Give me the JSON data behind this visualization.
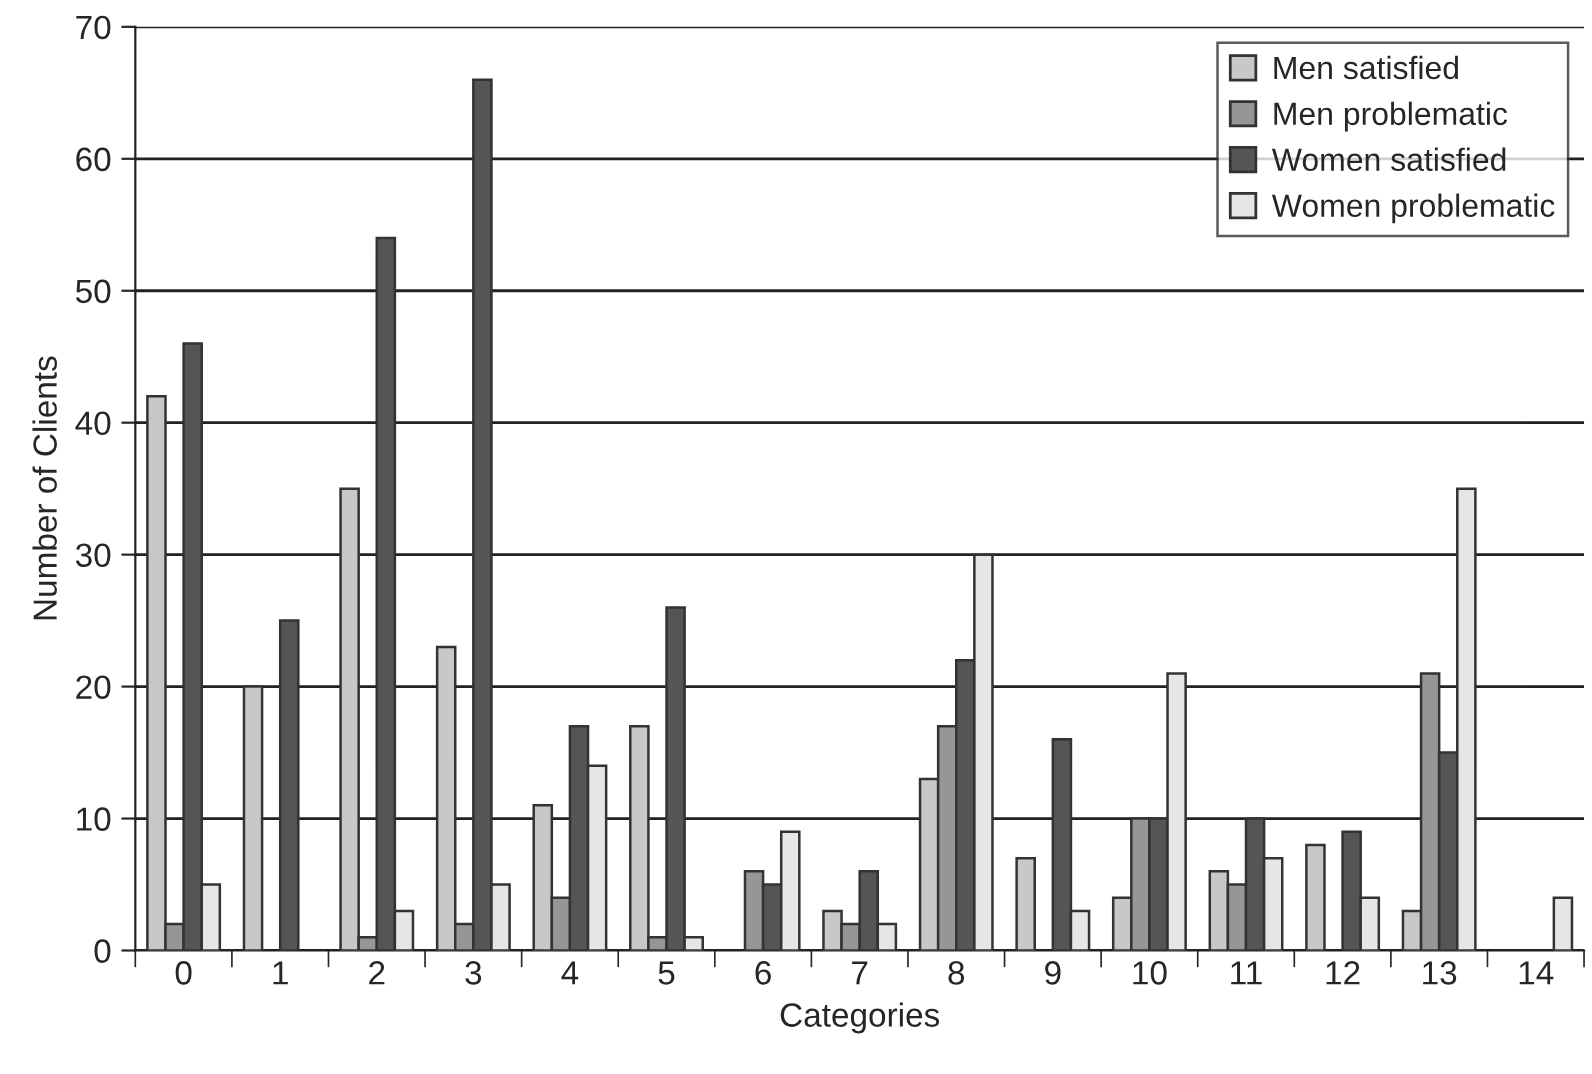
{
  "chart_data": {
    "type": "bar",
    "xlabel": "Categories",
    "ylabel": "Number of Clients",
    "categories": [
      "0",
      "1",
      "2",
      "3",
      "4",
      "5",
      "6",
      "7",
      "8",
      "9",
      "10",
      "11",
      "12",
      "13",
      "14"
    ],
    "series": [
      {
        "name": "Men satisfied",
        "color": "#c8c8c8",
        "values": [
          42,
          20,
          35,
          23,
          11,
          17,
          0,
          3,
          13,
          7,
          4,
          6,
          8,
          3,
          0
        ]
      },
      {
        "name": "Men problematic",
        "color": "#969696",
        "values": [
          2,
          0,
          1,
          2,
          4,
          1,
          6,
          2,
          17,
          0,
          10,
          5,
          0,
          21,
          0
        ]
      },
      {
        "name": "Women satisfied",
        "color": "#555555",
        "values": [
          46,
          25,
          54,
          66,
          17,
          26,
          5,
          6,
          22,
          16,
          10,
          10,
          9,
          15,
          0
        ]
      },
      {
        "name": "Women problematic",
        "color": "#e6e6e6",
        "values": [
          5,
          0,
          3,
          5,
          14,
          1,
          9,
          2,
          30,
          3,
          21,
          7,
          4,
          35,
          4
        ]
      }
    ],
    "ylim": [
      0,
      70
    ],
    "yticks": [
      0,
      10,
      20,
      30,
      40,
      50,
      60,
      70
    ],
    "grid": "y",
    "legend": "top right"
  }
}
